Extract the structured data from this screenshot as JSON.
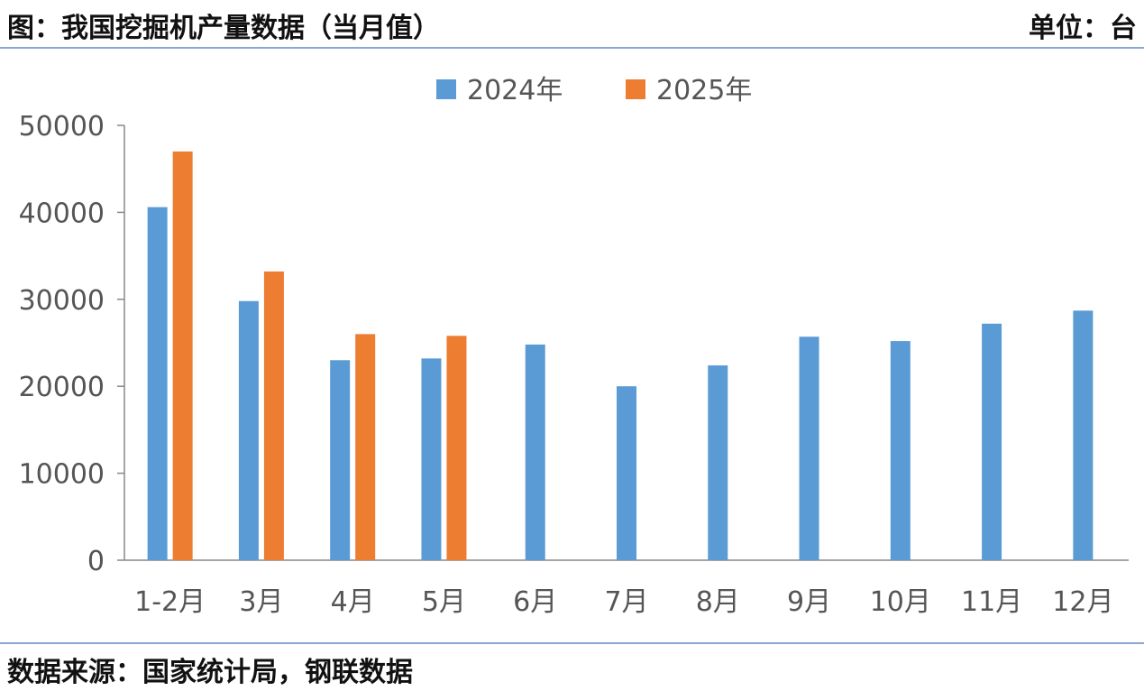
{
  "header": {
    "title": "图：我国挖掘机产量数据（当月值）",
    "unit": "单位：台"
  },
  "footer": {
    "source": "数据来源：国家统计局，钢联数据"
  },
  "colors": {
    "series_2024": "#5b9bd5",
    "series_2025": "#ed7d31",
    "rule": "#8aa7d6",
    "axis": "#888888"
  },
  "chart_data": {
    "type": "bar",
    "categories": [
      "1-2月",
      "3月",
      "4月",
      "5月",
      "6月",
      "7月",
      "8月",
      "9月",
      "10月",
      "11月",
      "12月"
    ],
    "series": [
      {
        "name": "2024年",
        "values": [
          40600,
          29800,
          23000,
          23200,
          24800,
          20000,
          22400,
          25700,
          25200,
          27200,
          28700
        ]
      },
      {
        "name": "2025年",
        "values": [
          47000,
          33200,
          26000,
          25800,
          null,
          null,
          null,
          null,
          null,
          null,
          null
        ]
      }
    ],
    "yticks": [
      0,
      10000,
      20000,
      30000,
      40000,
      50000
    ],
    "ylim": [
      0,
      50000
    ],
    "grid": false,
    "legend": "top-center"
  }
}
